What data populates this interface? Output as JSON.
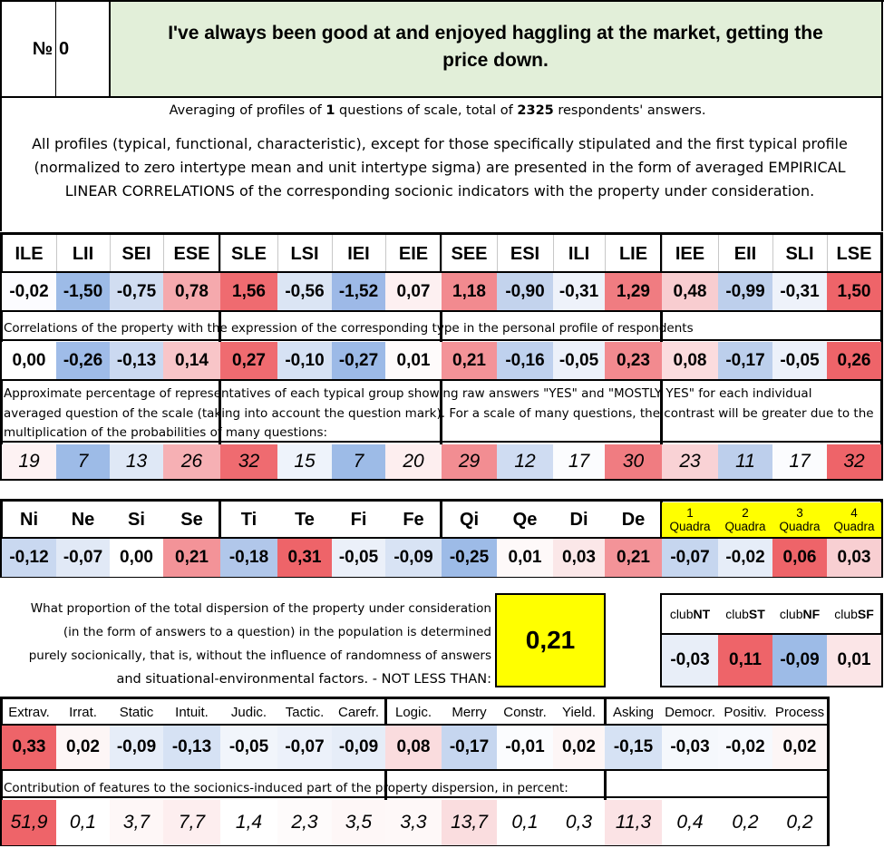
{
  "header": {
    "no_label": "№",
    "no_value": "0",
    "title_line1": "I've always been good at and enjoyed haggling at the market, getting the",
    "title_line2": "price down."
  },
  "summary": {
    "pre": "Averaging of profiles of ",
    "questions": "1",
    "mid": " questions of scale, total of ",
    "respondents": "2325",
    "post": " respondents' answers."
  },
  "description": [
    "All profiles (typical, functional, characteristic), except for those specifically stipulated and the first typical profile",
    "(normalized to zero intertype mean and unit intertype sigma) are presented in the form of averaged EMPIRICAL",
    "LINEAR CORRELATIONS of the corresponding socionic indicators with the property under consideration."
  ],
  "types": {
    "headers": [
      "ILE",
      "LII",
      "SEI",
      "ESE",
      "SLE",
      "LSI",
      "IEI",
      "EIE",
      "SEE",
      "ESI",
      "ILI",
      "LIE",
      "IEE",
      "EII",
      "SLI",
      "LSE"
    ],
    "profile": [
      "-0,02",
      "-1,50",
      "-0,75",
      "0,78",
      "1,56",
      "-0,56",
      "-1,52",
      "0,07",
      "1,18",
      "-0,90",
      "-0,31",
      "1,29",
      "0,48",
      "-0,99",
      "-0,31",
      "1,50"
    ],
    "profile_colors": [
      "#fcfcff",
      "#9dbbe7",
      "#d1ddf1",
      "#f5a9ad",
      "#ef6b70",
      "#dbe5f4",
      "#9db9e7",
      "#fdf0f1",
      "#f28a8f",
      "#c3d3ed",
      "#eef2fa",
      "#f07c81",
      "#f8cdd0",
      "#bdcfec",
      "#eef2fa",
      "#ee6469"
    ],
    "corr_label": "Correlations of the property with the expression of the corresponding type in the personal profile of respondents",
    "corr": [
      "0,00",
      "-0,26",
      "-0,13",
      "0,14",
      "0,27",
      "-0,10",
      "-0,27",
      "0,01",
      "0,21",
      "-0,16",
      "-0,05",
      "0,23",
      "0,08",
      "-0,17",
      "-0,05",
      "0,26"
    ],
    "corr_colors": [
      "#ffffff",
      "#9fbce8",
      "#cbd9f1",
      "#f8c5c8",
      "#ef6b70",
      "#d6e2f4",
      "#9cbae7",
      "#fefbfb",
      "#f39398",
      "#bfd1ee",
      "#ecf1fa",
      "#f28a8f",
      "#fbdcde",
      "#bccfec",
      "#ecf1fa",
      "#ee6469"
    ],
    "pct_label": [
      "Approximate percentage of representatives of each typical group showing raw answers \"YES\" and \"MOSTLY YES\" for each individual",
      "averaged question of the scale (taking into account the question mark). For a scale of many questions, the contrast will be greater due to the",
      "multiplication of the probabilities of many questions:"
    ],
    "pct": [
      "19",
      "7",
      "13",
      "26",
      "32",
      "15",
      "7",
      "20",
      "29",
      "12",
      "17",
      "30",
      "23",
      "11",
      "17",
      "32"
    ],
    "pct_colors": [
      "#fdf2f3",
      "#9dbbe7",
      "#dfe8f6",
      "#f6b0b4",
      "#ef6b70",
      "#eef3fb",
      "#9dbbe7",
      "#fdeeef",
      "#f28d92",
      "#cfdcf2",
      "#fbfcfe",
      "#f07c81",
      "#f9d2d5",
      "#bdcfec",
      "#fbfcfe",
      "#ee6469"
    ]
  },
  "functions": {
    "headers": [
      "Ni",
      "Ne",
      "Si",
      "Se",
      "Ti",
      "Te",
      "Fi",
      "Fe",
      "Qi",
      "Qe",
      "Di",
      "De"
    ],
    "values": [
      "-0,12",
      "-0,07",
      "0,00",
      "0,21",
      "-0,18",
      "0,31",
      "-0,05",
      "-0,09",
      "-0,25",
      "0,01",
      "0,03",
      "0,21"
    ],
    "colors": [
      "#c9d8f0",
      "#e1e9f6",
      "#ffffff",
      "#f39398",
      "#b1c7ea",
      "#ee6469",
      "#ebf0f9",
      "#d8e3f4",
      "#9dbbe7",
      "#fef9f9",
      "#fbe7e8",
      "#f39398"
    ],
    "quadra_num": [
      "1",
      "2",
      "3",
      "4"
    ],
    "quadra_word": "Quadra",
    "quadra_values": [
      "-0,07",
      "-0,02",
      "0,06",
      "0,03"
    ],
    "quadra_colors": [
      "#c6d6ef",
      "#e6edf8",
      "#ee6469",
      "#f8cfd2"
    ],
    "quadra_header_color": "#ffff00"
  },
  "dispersion": {
    "text": [
      "What proportion of the total dispersion of the property under consideration",
      "(in the form of answers to a question) in the population is determined",
      "purely socionically, that is, without the influence of randomness of answers",
      "and situational-environmental factors. - NOT LESS THAN:"
    ],
    "value": "0,21",
    "value_color": "#ffff00"
  },
  "clubs": {
    "prefix": "club",
    "codes": [
      "NT",
      "ST",
      "NF",
      "SF"
    ],
    "values": [
      "-0,03",
      "0,11",
      "-0,09",
      "0,01"
    ],
    "colors": [
      "#e8eef8",
      "#ee6469",
      "#9dbbe7",
      "#fbe5e7"
    ]
  },
  "traits": {
    "headers": [
      "Extrav.",
      "Irrat.",
      "Static",
      "Intuit.",
      "Judic.",
      "Tactic.",
      "Carefr.",
      "Logic.",
      "Merry",
      "Constr.",
      "Yield.",
      "Asking",
      "Democr.",
      "Positiv.",
      "Process"
    ],
    "values": [
      "0,33",
      "0,02",
      "-0,09",
      "-0,13",
      "-0,05",
      "-0,07",
      "-0,09",
      "0,08",
      "-0,17",
      "-0,01",
      "0,02",
      "-0,15",
      "-0,03",
      "-0,02",
      "0,02"
    ],
    "colors": [
      "#ee6469",
      "#fdf6f6",
      "#e6edf8",
      "#d6e2f4",
      "#f1f5fb",
      "#ecf1fa",
      "#e6edf8",
      "#fadcde",
      "#c6d6ef",
      "#fbfcfe",
      "#fdf6f6",
      "#d6e2f4",
      "#f5f8fc",
      "#f7f9fd",
      "#fdf6f6"
    ],
    "contrib_label": "Contribution of features to the sociоnics-induced part of the property dispersion, in percent:",
    "contrib": [
      "51,9",
      "0,1",
      "3,7",
      "7,7",
      "1,4",
      "2,3",
      "3,5",
      "3,3",
      "13,7",
      "0,1",
      "0,3",
      "11,3",
      "0,4",
      "0,2",
      "0,2"
    ],
    "contrib_colors": [
      "#ee6469",
      "#ffffff",
      "#fef7f7",
      "#fdeeef",
      "#ffffff",
      "#fefbfb",
      "#fef7f7",
      "#fef8f8",
      "#fadddf",
      "#ffffff",
      "#ffffff",
      "#fbe3e5",
      "#ffffff",
      "#ffffff",
      "#ffffff"
    ]
  }
}
